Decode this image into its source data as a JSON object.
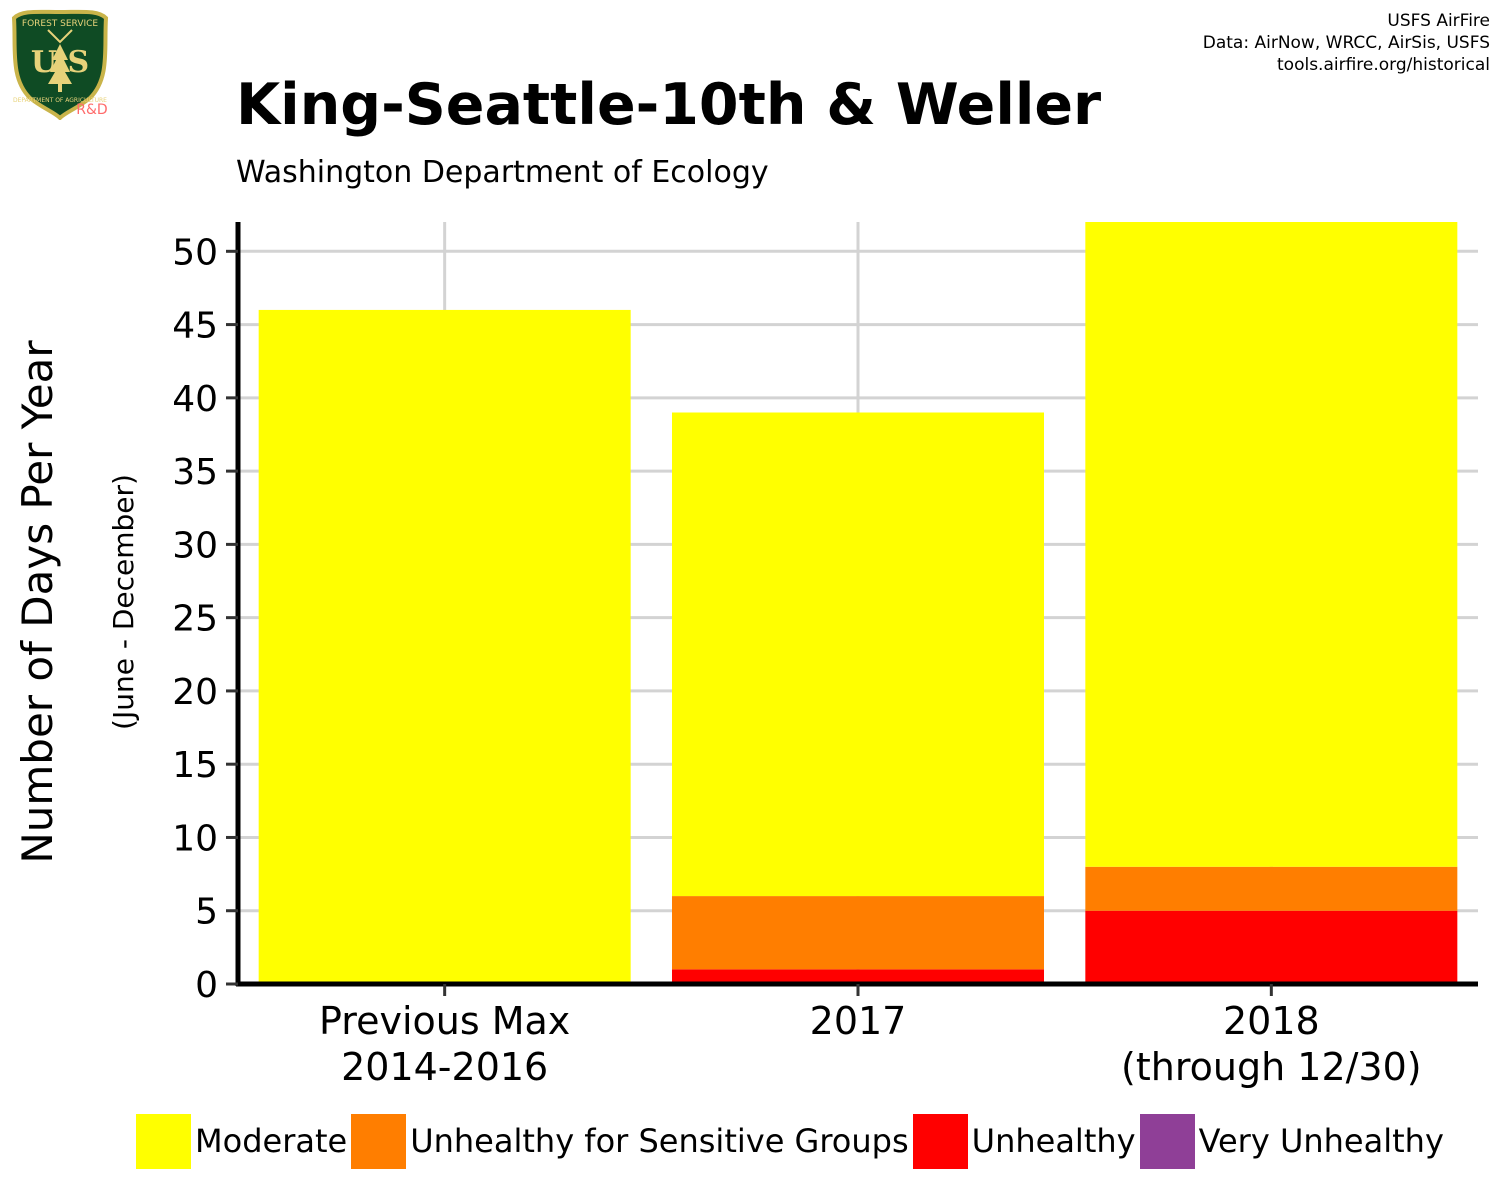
{
  "logo": {
    "top_text": "FOREST SERVICE",
    "letters": "U S",
    "bottom_text": "DEPARTMENT OF AGRICULTURE",
    "rd_text": "R&D",
    "colors": {
      "shield": "#0f4b24",
      "border": "#c9b44a",
      "text": "#e7d27a",
      "rd": "#ff6b6b"
    }
  },
  "credits": [
    "USFS AirFire",
    "Data: AirNow, WRCC, AirSis, USFS",
    "tools.airfire.org/historical"
  ],
  "header": {
    "title": "King-Seattle-10th & Weller",
    "subtitle": "Washington Department of Ecology"
  },
  "chart_data": {
    "type": "bar",
    "stacked": true,
    "categories": [
      [
        "Previous Max",
        "2014-2016"
      ],
      [
        "2017"
      ],
      [
        "2018",
        "(through 12/30)"
      ]
    ],
    "series": [
      {
        "name": "Unhealthy",
        "color": "#ff0000",
        "values": [
          0,
          1,
          5
        ]
      },
      {
        "name": "Unhealthy for Sensitive Groups",
        "color": "#ff7e00",
        "values": [
          0,
          5,
          3
        ]
      },
      {
        "name": "Moderate",
        "color": "#ffff00",
        "values": [
          46,
          33,
          44
        ]
      },
      {
        "name": "Very Unhealthy",
        "color": "#8f3f97",
        "values": [
          0,
          0,
          0
        ]
      }
    ],
    "ylabel": "Number of Days Per Year",
    "ylabel_sub": "(June - December)",
    "ylim": [
      0,
      52
    ],
    "yticks": [
      0,
      5,
      10,
      15,
      20,
      25,
      30,
      35,
      40,
      45,
      50
    ],
    "grid": true
  },
  "legend": [
    {
      "label": "Moderate",
      "color": "#ffff00"
    },
    {
      "label": "Unhealthy for Sensitive Groups",
      "color": "#ff7e00"
    },
    {
      "label": "Unhealthy",
      "color": "#ff0000"
    },
    {
      "label": "Very Unhealthy",
      "color": "#8f3f97"
    }
  ]
}
